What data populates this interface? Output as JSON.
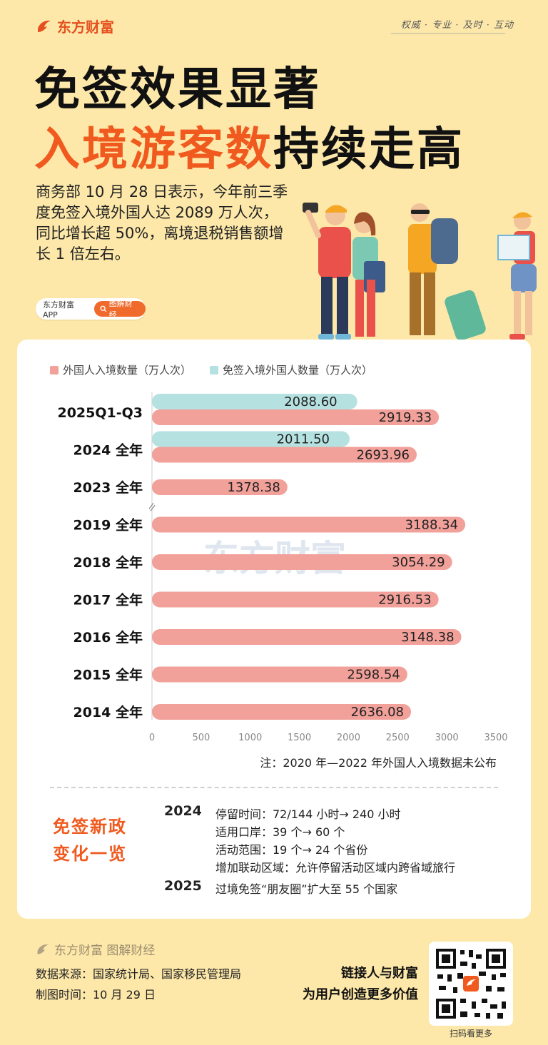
{
  "brand": {
    "name": "东方财富",
    "tagline": "权威 · 专业 · 及时 · 互动"
  },
  "title": {
    "line1": "免签效果显著",
    "line2_highlight": "入境游客数",
    "line2_rest": "持续走高"
  },
  "intro": "商务部 10 月 28 日表示，今年前三季度免签入境外国人达 2089 万人次，同比增长超 50%，离境退税销售额增长 1 倍左右。",
  "app": {
    "name": "东方财富APP",
    "button": "图解财经"
  },
  "colors": {
    "brand": "#f05a1e",
    "bar_total": "#f2a09a",
    "bar_visa_free": "#b5e2e0",
    "background": "#fde8a9"
  },
  "chart_data": {
    "type": "bar",
    "orientation": "horizontal",
    "categories": [
      "2025Q1-Q3",
      "2024 全年",
      "2023 全年",
      "2019 全年",
      "2018 全年",
      "2017 全年",
      "2016 全年",
      "2015 全年",
      "2014 全年"
    ],
    "series": [
      {
        "name": "外国人入境数量（万人次）",
        "color": "#f2a09a",
        "values": [
          2919.33,
          2693.96,
          1378.38,
          3188.34,
          3054.29,
          2916.53,
          3148.38,
          2598.54,
          2636.08
        ],
        "labels": [
          "2919.33",
          "2693.96",
          "1378.38",
          "3188.34",
          "3054.29",
          "2916.53",
          "3148.38",
          "2598.54",
          "2636.08"
        ]
      },
      {
        "name": "免签入境外国人数量（万人次）",
        "color": "#b5e2e0",
        "values": [
          2088.6,
          2011.5,
          null,
          null,
          null,
          null,
          null,
          null,
          null
        ],
        "labels": [
          "2088.60",
          "2011.50",
          "",
          "",
          "",
          "",
          "",
          "",
          ""
        ]
      }
    ],
    "xlim": [
      0,
      3500
    ],
    "xticks": [
      "0",
      "500",
      "1000",
      "1500",
      "2000",
      "2500",
      "3000",
      "3500"
    ],
    "legend_position": "top-left",
    "axis_break_after": "2023 全年",
    "watermark": "东方财富",
    "note": "注：2020 年—2022 年外国人入境数据未公布"
  },
  "policy": {
    "title_line1": "免签新政",
    "title_line2": "变化一览",
    "year_2024": "2024",
    "items_2024": [
      "停留时间：72/144 小时→ 240 小时",
      "适用口岸：39 个→ 60 个",
      "活动范围：19 个→ 24 个省份",
      "增加联动区域：允许停留活动区域内跨省域旅行"
    ],
    "year_2025": "2025",
    "items_2025": [
      "过境免签“朋友圈”扩大至 55 个国家"
    ]
  },
  "footer": {
    "brand": "东方财富 图解财经",
    "source": "数据来源：国家统计局、国家移民管理局",
    "made": "制图时间：10 月 29 日",
    "slogan1": "链接人与财富",
    "slogan2": "为用户创造更多价值",
    "qr_caption": "扫码看更多"
  }
}
